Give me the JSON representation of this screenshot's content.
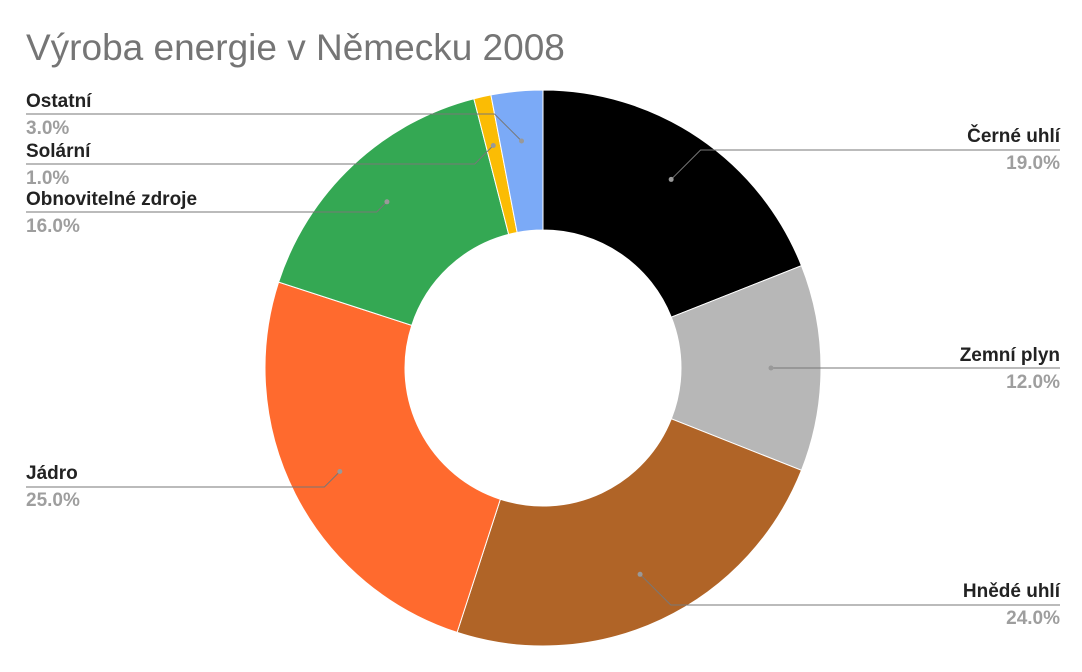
{
  "chart_data": {
    "type": "pie",
    "title": "Výroba energie v Německu 2008",
    "donut": true,
    "slices": [
      {
        "label": "Černé uhlí",
        "value": 19.0,
        "display": "19.0%",
        "color": "#000000"
      },
      {
        "label": "Zemní plyn",
        "value": 12.0,
        "display": "12.0%",
        "color": "#b7b7b7"
      },
      {
        "label": "Hnědé uhlí",
        "value": 24.0,
        "display": "24.0%",
        "color": "#b06427"
      },
      {
        "label": "Jádro",
        "value": 25.0,
        "display": "25.0%",
        "color": "#ff6a2e"
      },
      {
        "label": "Obnovitelné zdroje",
        "value": 16.0,
        "display": "16.0%",
        "color": "#34a853"
      },
      {
        "label": "Solární",
        "value": 1.0,
        "display": "1.0%",
        "color": "#fbbc04"
      },
      {
        "label": "Ostatní",
        "value": 3.0,
        "display": "3.0%",
        "color": "#7baaf7"
      }
    ]
  }
}
